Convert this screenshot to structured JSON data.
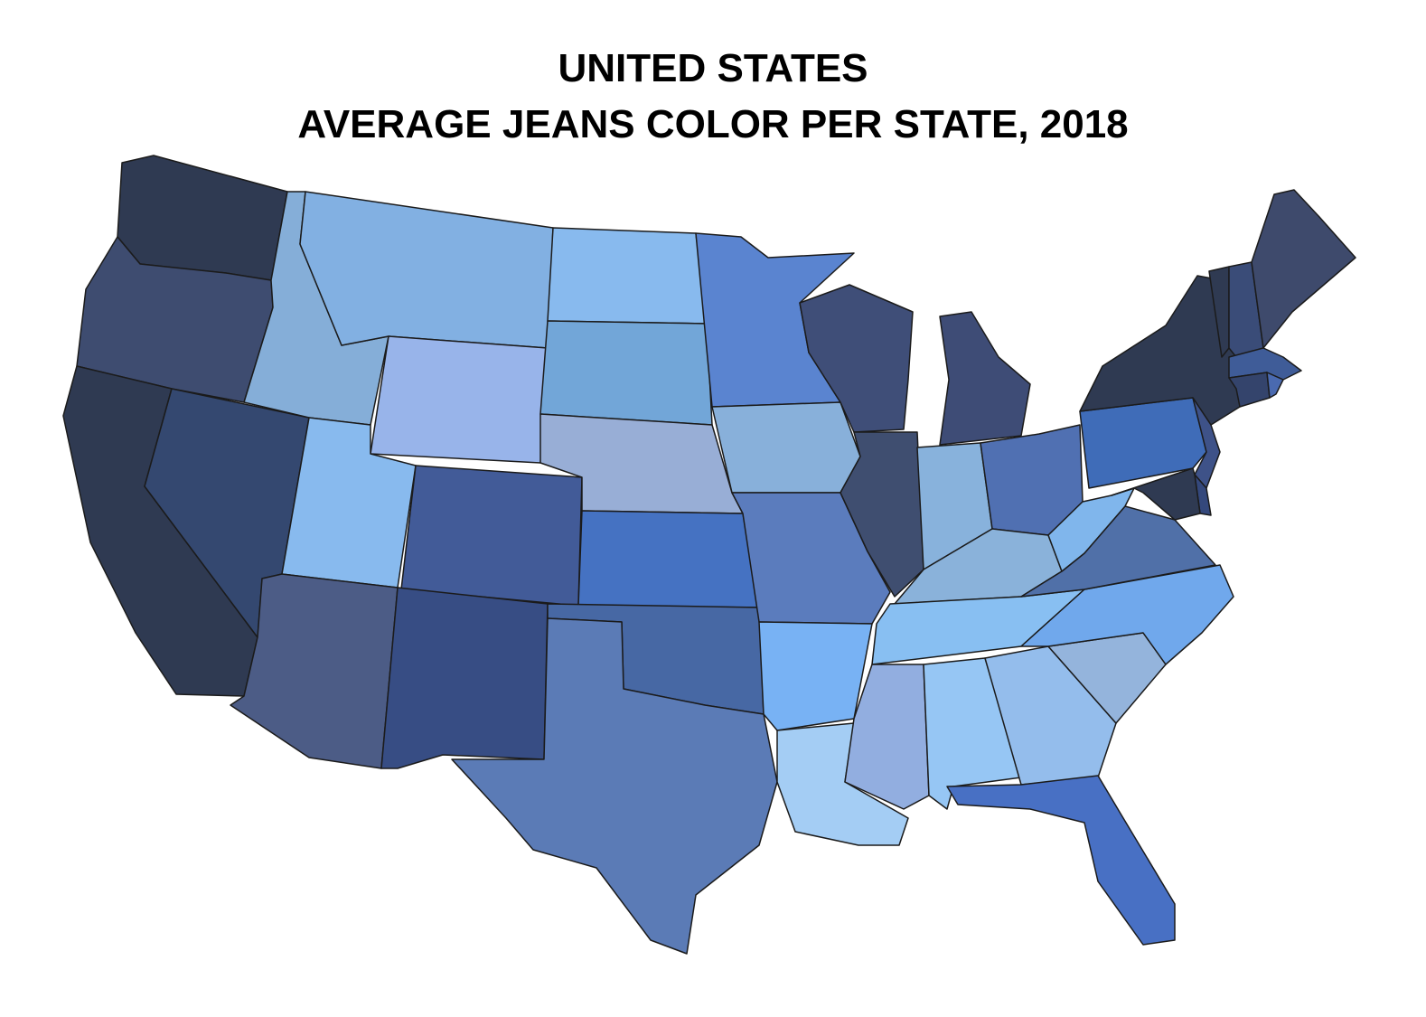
{
  "title_line1": "UNITED STATES",
  "title_line2": "AVERAGE JEANS COLOR PER STATE, 2018",
  "states": {
    "WA": {
      "color": "#2f3a52"
    },
    "OR": {
      "color": "#3e4c70"
    },
    "CA": {
      "color": "#2f3a52"
    },
    "NV": {
      "color": "#344870"
    },
    "ID": {
      "color": "#85aed8"
    },
    "MT": {
      "color": "#82b0e2"
    },
    "WY": {
      "color": "#98b4ea"
    },
    "UT": {
      "color": "#88baee"
    },
    "CO": {
      "color": "#425b98"
    },
    "AZ": {
      "color": "#4c5c86"
    },
    "NM": {
      "color": "#374d84"
    },
    "ND": {
      "color": "#88baee"
    },
    "SD": {
      "color": "#72a6d8"
    },
    "NE": {
      "color": "#98aed6"
    },
    "KS": {
      "color": "#4572c2"
    },
    "OK": {
      "color": "#4768a4"
    },
    "TX": {
      "color": "#5b7bb6"
    },
    "MN": {
      "color": "#5a84d0"
    },
    "IA": {
      "color": "#88b0da"
    },
    "MO": {
      "color": "#5b7cbd"
    },
    "AR": {
      "color": "#78b2f4"
    },
    "LA": {
      "color": "#a4cdf4"
    },
    "WI": {
      "color": "#3f4e78"
    },
    "IL": {
      "color": "#3f4e70"
    },
    "MI": {
      "color": "#3e4c76"
    },
    "IN": {
      "color": "#88b2dc"
    },
    "OH": {
      "color": "#5070b2"
    },
    "KY": {
      "color": "#8ab2da"
    },
    "TN": {
      "color": "#88bff2"
    },
    "MS": {
      "color": "#92aee0"
    },
    "AL": {
      "color": "#96c6f4"
    },
    "GA": {
      "color": "#94bdec"
    },
    "FL": {
      "color": "#4870c4"
    },
    "SC": {
      "color": "#94b4dc"
    },
    "NC": {
      "color": "#70a8ec"
    },
    "VA": {
      "color": "#5070a8"
    },
    "WV": {
      "color": "#80b6ec"
    },
    "PA": {
      "color": "#3f6cb8"
    },
    "NY": {
      "color": "#2f3a52"
    },
    "VT": {
      "color": "#2f3a52"
    },
    "NH": {
      "color": "#3a4c78"
    },
    "ME": {
      "color": "#3e4a6c"
    },
    "MA": {
      "color": "#3f5c98"
    },
    "CT": {
      "color": "#34446c"
    },
    "RI": {
      "color": "#4a6ab0"
    },
    "NJ": {
      "color": "#3e5288"
    },
    "DE": {
      "color": "#34487c"
    },
    "MD": {
      "color": "#2f3a52"
    }
  }
}
